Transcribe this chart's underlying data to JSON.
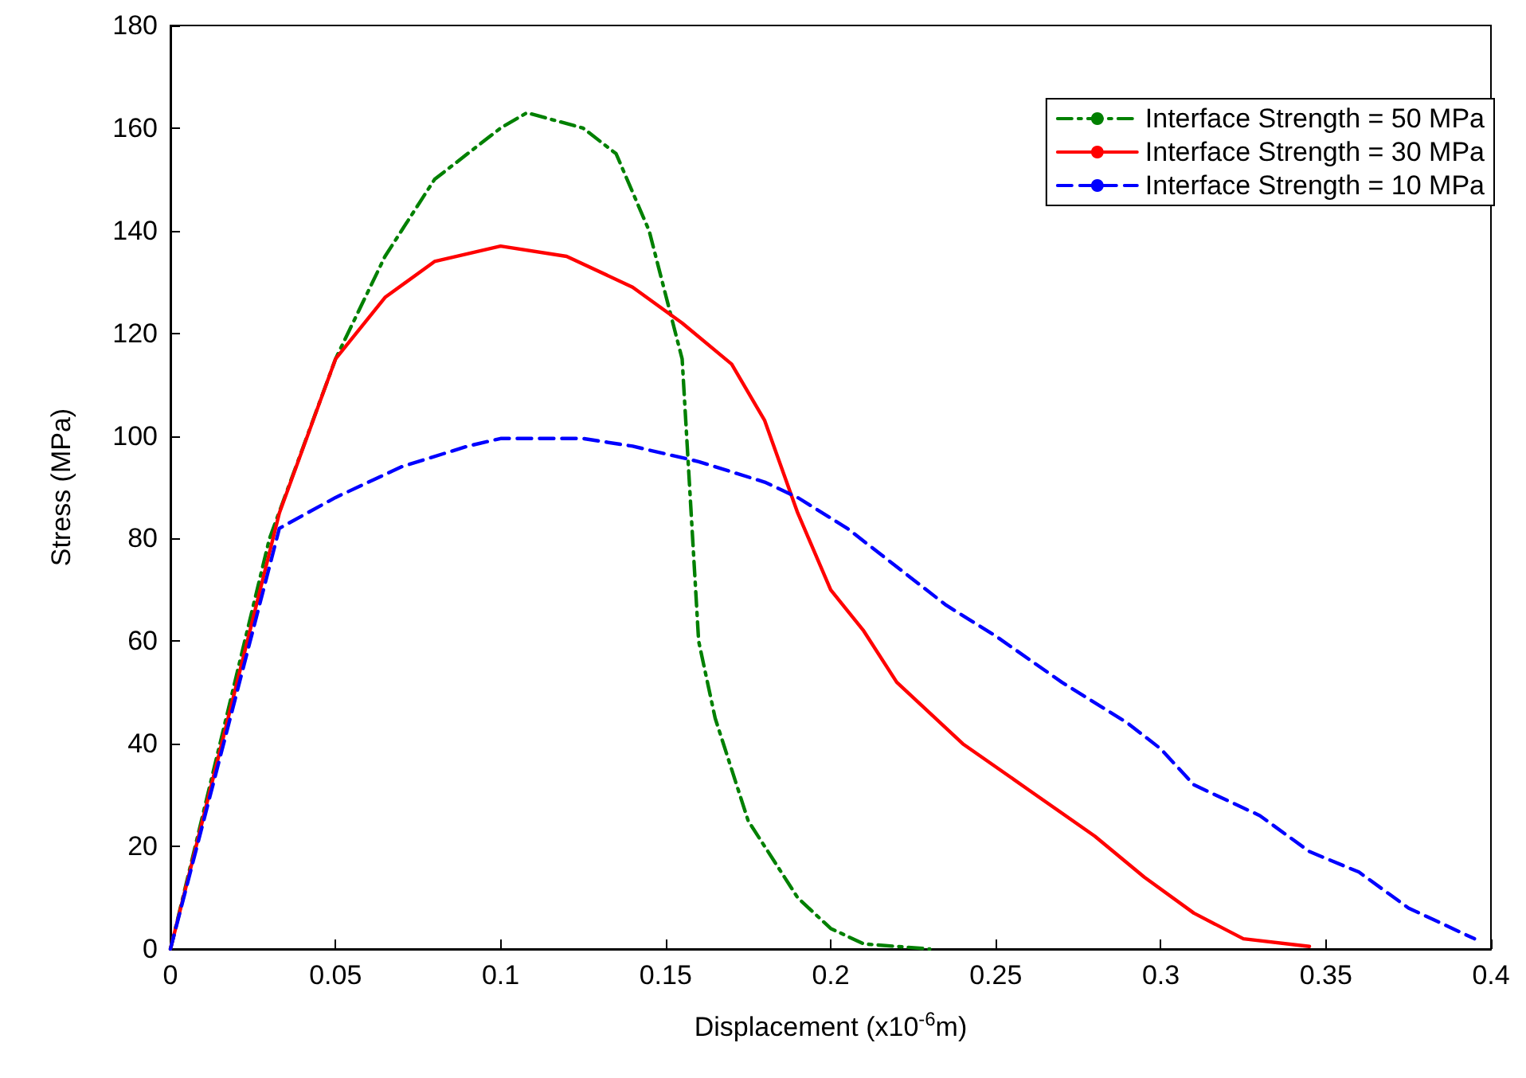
{
  "chart_data": {
    "type": "line",
    "xlabel": "Displacement (x10$^{-6}$m)",
    "ylabel": "Stress (MPa)",
    "xlim": [
      0,
      0.4
    ],
    "xticks": [
      0,
      0.05,
      0.1,
      0.15,
      0.2,
      0.25,
      0.3,
      0.35,
      0.4
    ],
    "ylim": [
      0,
      180
    ],
    "yticks": [
      0,
      20,
      40,
      60,
      80,
      100,
      120,
      140,
      160,
      180
    ],
    "grid": false,
    "legend": "top right",
    "marker": "none",
    "series": [
      {
        "name": "Interface Strength = 50 MPa",
        "color": "#008000",
        "line_style": "dashdot",
        "x": [
          0,
          0.03,
          0.05,
          0.065,
          0.08,
          0.1,
          0.108,
          0.125,
          0.135,
          0.145,
          0.155,
          0.16,
          0.165,
          0.175,
          0.19,
          0.2,
          0.21,
          0.23
        ],
        "values": [
          0,
          80,
          115,
          135,
          150,
          160,
          163,
          160,
          155,
          140,
          115,
          60,
          45,
          25,
          10,
          4,
          1,
          0
        ]
      },
      {
        "name": "Interface Strength = 30 MPa",
        "color": "#ff0000",
        "line_style": "solid",
        "x": [
          0,
          0.033,
          0.05,
          0.065,
          0.08,
          0.1,
          0.12,
          0.14,
          0.155,
          0.17,
          0.18,
          0.19,
          0.2,
          0.21,
          0.22,
          0.24,
          0.26,
          0.28,
          0.295,
          0.31,
          0.325,
          0.345
        ],
        "values": [
          0,
          85,
          115,
          127,
          134,
          137,
          135,
          129,
          122,
          114,
          103,
          85,
          70,
          62,
          52,
          40,
          31,
          22,
          14,
          7,
          2,
          0.5
        ]
      },
      {
        "name": "Interface Strength = 10 MPa",
        "color": "#0000ff",
        "line_style": "dashed",
        "x": [
          0,
          0.033,
          0.05,
          0.07,
          0.09,
          0.1,
          0.125,
          0.14,
          0.16,
          0.17,
          0.18,
          0.19,
          0.205,
          0.215,
          0.235,
          0.25,
          0.27,
          0.29,
          0.3,
          0.31,
          0.33,
          0.345,
          0.36,
          0.375,
          0.395
        ],
        "values": [
          0,
          82,
          88,
          94,
          98,
          99.5,
          99.5,
          98,
          95,
          93,
          91,
          88,
          82,
          77,
          67,
          61,
          52,
          44,
          39,
          32,
          26,
          19,
          15,
          8,
          2
        ]
      }
    ]
  }
}
